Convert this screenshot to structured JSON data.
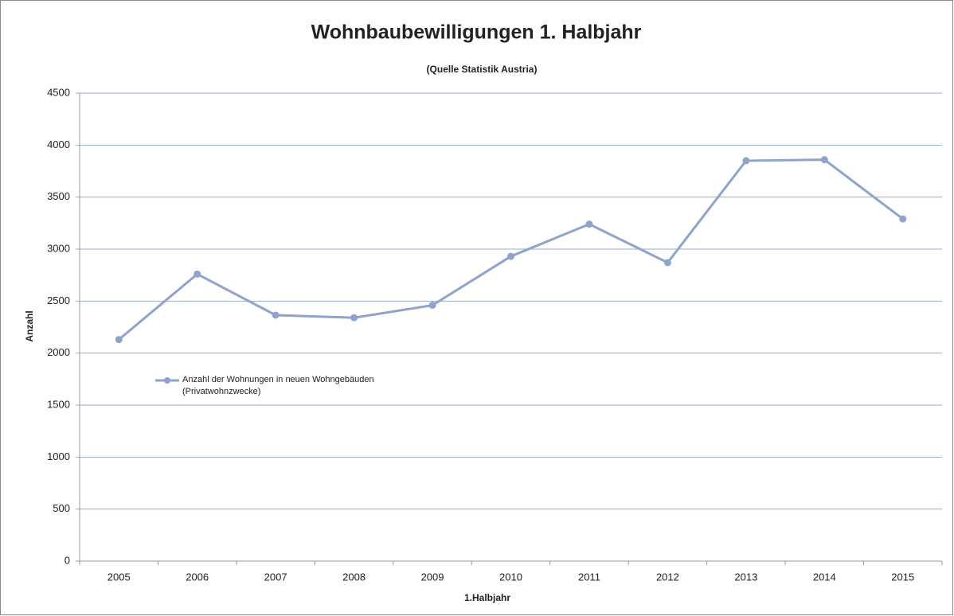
{
  "chart_data": {
    "type": "line",
    "title": "Wohnbaubewilligungen 1. Halbjahr",
    "subtitle": "(Quelle Statistik Austria)",
    "x_label": "1.Halbjahr",
    "y_label": "Anzahl",
    "categories": [
      "2005",
      "2006",
      "2007",
      "2008",
      "2009",
      "2010",
      "2011",
      "2012",
      "2013",
      "2014",
      "2015"
    ],
    "series": [
      {
        "name": "Anzahl der Wohnungen in neuen Wohngebäuden (Privatwohnzwecke)",
        "color": "#8fa3cb",
        "values": [
          2130,
          2760,
          2365,
          2340,
          2460,
          2930,
          3240,
          2870,
          3850,
          3860,
          3290
        ]
      }
    ],
    "ylim": [
      0,
      4500
    ],
    "yticks": [
      0,
      500,
      1000,
      1500,
      2000,
      2500,
      3000,
      3500,
      4000,
      4500
    ],
    "grid": true,
    "legend": "left"
  }
}
